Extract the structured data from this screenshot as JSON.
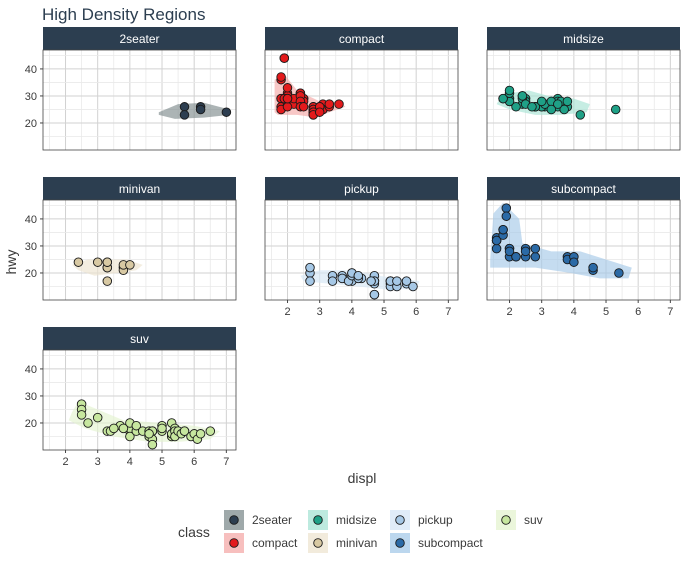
{
  "chart_data": {
    "type": "scatter",
    "title": "High Density Regions",
    "xlabel": "displ",
    "ylabel": "hwy",
    "xlim": [
      1.3,
      7.3
    ],
    "ylim": [
      10,
      47
    ],
    "x_ticks": [
      2,
      3,
      4,
      5,
      6,
      7
    ],
    "y_ticks": [
      20,
      30,
      40
    ],
    "grid": true,
    "legend": {
      "title": "class",
      "placement": "bottom",
      "entries": [
        "2seater",
        "compact",
        "midsize",
        "minivan",
        "pickup",
        "subcompact",
        "suv"
      ]
    },
    "panels": [
      {
        "name": "2seater",
        "color": "#2d3e50",
        "region_color": "#7f8c8d",
        "points": [
          [
            5.7,
            26
          ],
          [
            5.7,
            23
          ],
          [
            6.2,
            26
          ],
          [
            6.2,
            25
          ],
          [
            7.0,
            24
          ]
        ],
        "region": [
          [
            4.9,
            24
          ],
          [
            5.5,
            27
          ],
          [
            6.3,
            27.5
          ],
          [
            7.1,
            25
          ],
          [
            7.1,
            23
          ],
          [
            6.3,
            22
          ],
          [
            5.4,
            21.5
          ],
          [
            4.9,
            23
          ]
        ]
      },
      {
        "name": "compact",
        "color": "#e31a1c",
        "region_color": "#f4a9a8",
        "points": [
          [
            1.8,
            29
          ],
          [
            1.8,
            29
          ],
          [
            2.0,
            31
          ],
          [
            2.0,
            30
          ],
          [
            2.8,
            26
          ],
          [
            2.8,
            26
          ],
          [
            3.1,
            27
          ],
          [
            1.8,
            26
          ],
          [
            1.8,
            25
          ],
          [
            2.0,
            28
          ],
          [
            2.0,
            27
          ],
          [
            2.8,
            25
          ],
          [
            2.8,
            25
          ],
          [
            3.1,
            25
          ],
          [
            3.1,
            25
          ],
          [
            2.2,
            27
          ],
          [
            2.2,
            29
          ],
          [
            2.4,
            31
          ],
          [
            2.4,
            31
          ],
          [
            3.0,
            26
          ],
          [
            3.0,
            26
          ],
          [
            3.3,
            26
          ],
          [
            1.8,
            36
          ],
          [
            1.8,
            37
          ],
          [
            1.9,
            44
          ],
          [
            1.9,
            29
          ],
          [
            2.0,
            26
          ],
          [
            2.0,
            29
          ],
          [
            2.5,
            29
          ],
          [
            2.5,
            29
          ],
          [
            2.8,
            23
          ],
          [
            2.8,
            24
          ],
          [
            1.9,
            44
          ],
          [
            2.0,
            29
          ],
          [
            2.5,
            28
          ],
          [
            2.8,
            24
          ],
          [
            2.8,
            23
          ],
          [
            3.0,
            24
          ],
          [
            3.3,
            27
          ],
          [
            3.6,
            27
          ],
          [
            2.4,
            30
          ],
          [
            2.4,
            28
          ],
          [
            2.0,
            33
          ],
          [
            2.4,
            26
          ],
          [
            2.5,
            26
          ]
        ],
        "region": [
          [
            1.6,
            24
          ],
          [
            1.6,
            36
          ],
          [
            1.9,
            38
          ],
          [
            2.3,
            32
          ],
          [
            3.0,
            28
          ],
          [
            3.6,
            28
          ],
          [
            3.8,
            26
          ],
          [
            3.3,
            24
          ],
          [
            2.9,
            22
          ],
          [
            2.3,
            23
          ],
          [
            1.7,
            23
          ]
        ]
      },
      {
        "name": "midsize",
        "color": "#1fa187",
        "region_color": "#a7e3d4",
        "points": [
          [
            2.4,
            27
          ],
          [
            2.4,
            30
          ],
          [
            3.1,
            26
          ],
          [
            3.5,
            29
          ],
          [
            3.6,
            26
          ],
          [
            2.0,
            29
          ],
          [
            2.0,
            28
          ],
          [
            2.5,
            29
          ],
          [
            2.5,
            28
          ],
          [
            3.0,
            27
          ],
          [
            3.0,
            26
          ],
          [
            3.5,
            26
          ],
          [
            2.2,
            26
          ],
          [
            2.4,
            29
          ],
          [
            3.0,
            26
          ],
          [
            3.5,
            28
          ],
          [
            2.0,
            28
          ],
          [
            2.8,
            26
          ],
          [
            3.8,
            26
          ],
          [
            1.8,
            29
          ],
          [
            1.8,
            29
          ],
          [
            2.0,
            31
          ],
          [
            2.0,
            32
          ],
          [
            2.8,
            26
          ],
          [
            2.8,
            26
          ],
          [
            3.1,
            27
          ],
          [
            3.6,
            28
          ],
          [
            4.2,
            23
          ],
          [
            5.3,
            25
          ],
          [
            2.5,
            27
          ],
          [
            3.3,
            28
          ],
          [
            3.8,
            28
          ],
          [
            3.7,
            25
          ],
          [
            2.4,
            30
          ],
          [
            3.5,
            27
          ],
          [
            2.7,
            26
          ],
          [
            3.0,
            28
          ],
          [
            3.3,
            25
          ]
        ],
        "region": [
          [
            1.7,
            29
          ],
          [
            2.0,
            31
          ],
          [
            2.6,
            32
          ],
          [
            3.2,
            30
          ],
          [
            4.0,
            29
          ],
          [
            4.5,
            27
          ],
          [
            4.4,
            24
          ],
          [
            3.6,
            23
          ],
          [
            2.8,
            23
          ],
          [
            2.0,
            25
          ],
          [
            1.6,
            27
          ]
        ]
      },
      {
        "name": "minivan",
        "color": "#d8c9a3",
        "region_color": "#ede4d0",
        "points": [
          [
            2.4,
            24
          ],
          [
            3.0,
            24
          ],
          [
            3.3,
            22
          ],
          [
            3.3,
            22
          ],
          [
            3.3,
            24
          ],
          [
            3.3,
            24
          ],
          [
            3.3,
            17
          ],
          [
            3.8,
            22
          ],
          [
            3.8,
            21
          ],
          [
            3.8,
            23
          ],
          [
            4.0,
            23
          ]
        ],
        "region": [
          [
            2.2,
            23
          ],
          [
            2.7,
            25
          ],
          [
            3.3,
            25
          ],
          [
            3.9,
            25
          ],
          [
            4.4,
            23
          ],
          [
            4.2,
            21
          ],
          [
            3.6,
            20
          ],
          [
            2.9,
            19
          ],
          [
            2.4,
            21
          ]
        ]
      },
      {
        "name": "pickup",
        "color": "#a6c8e6",
        "region_color": "#d6e6f5",
        "points": [
          [
            2.7,
            20
          ],
          [
            2.7,
            17
          ],
          [
            2.7,
            22
          ],
          [
            3.4,
            19
          ],
          [
            3.4,
            17
          ],
          [
            4.0,
            20
          ],
          [
            4.0,
            17
          ],
          [
            4.7,
            17
          ],
          [
            4.7,
            19
          ],
          [
            4.7,
            17
          ],
          [
            4.7,
            12
          ],
          [
            5.2,
            17
          ],
          [
            5.2,
            16
          ],
          [
            5.7,
            16
          ],
          [
            5.9,
            15
          ],
          [
            4.7,
            16
          ],
          [
            5.2,
            17
          ],
          [
            3.7,
            19
          ],
          [
            3.7,
            18
          ],
          [
            3.9,
            17
          ],
          [
            4.3,
            18
          ],
          [
            4.7,
            17
          ],
          [
            4.7,
            12
          ],
          [
            5.2,
            15
          ],
          [
            5.2,
            17
          ],
          [
            5.7,
            17
          ],
          [
            4.0,
            19
          ],
          [
            4.0,
            20
          ],
          [
            4.6,
            17
          ],
          [
            5.4,
            15
          ],
          [
            5.4,
            17
          ],
          [
            4.2,
            18
          ],
          [
            4.2,
            19
          ]
        ],
        "region": [
          [
            2.4,
            19
          ],
          [
            3.0,
            21
          ],
          [
            4.0,
            21
          ],
          [
            4.8,
            19
          ],
          [
            5.5,
            18
          ],
          [
            6.1,
            17
          ],
          [
            6.0,
            14
          ],
          [
            5.0,
            14
          ],
          [
            4.2,
            15
          ],
          [
            3.3,
            16
          ],
          [
            2.5,
            17
          ]
        ]
      },
      {
        "name": "subcompact",
        "color": "#2b6aa6",
        "region_color": "#a6c9e8",
        "points": [
          [
            1.6,
            33
          ],
          [
            1.6,
            32
          ],
          [
            1.6,
            32
          ],
          [
            1.6,
            29
          ],
          [
            1.6,
            32
          ],
          [
            1.8,
            34
          ],
          [
            1.8,
            36
          ],
          [
            1.8,
            36
          ],
          [
            1.9,
            44
          ],
          [
            1.9,
            41
          ],
          [
            2.0,
            29
          ],
          [
            2.0,
            26
          ],
          [
            2.0,
            29
          ],
          [
            2.0,
            28
          ],
          [
            2.2,
            26
          ],
          [
            2.2,
            26
          ],
          [
            2.5,
            26
          ],
          [
            2.5,
            29
          ],
          [
            2.5,
            28
          ],
          [
            2.8,
            26
          ],
          [
            2.8,
            29
          ],
          [
            3.8,
            26
          ],
          [
            3.8,
            25
          ],
          [
            4.0,
            26
          ],
          [
            4.0,
            24
          ],
          [
            4.6,
            21
          ],
          [
            4.6,
            22
          ],
          [
            5.4,
            20
          ]
        ],
        "region": [
          [
            1.4,
            25
          ],
          [
            1.5,
            42
          ],
          [
            1.8,
            46
          ],
          [
            2.3,
            40
          ],
          [
            2.4,
            31
          ],
          [
            3.3,
            28
          ],
          [
            4.2,
            28
          ],
          [
            5.0,
            25
          ],
          [
            5.8,
            22
          ],
          [
            5.7,
            18
          ],
          [
            4.8,
            18
          ],
          [
            3.9,
            20
          ],
          [
            2.8,
            22
          ],
          [
            1.9,
            22
          ],
          [
            1.4,
            22
          ]
        ]
      },
      {
        "name": "suv",
        "color": "#c7e79f",
        "region_color": "#e4f3cf",
        "points": [
          [
            2.5,
            27
          ],
          [
            2.5,
            25
          ],
          [
            2.5,
            23
          ],
          [
            2.7,
            20
          ],
          [
            3.0,
            22
          ],
          [
            3.3,
            17
          ],
          [
            3.4,
            17
          ],
          [
            3.7,
            19
          ],
          [
            4.0,
            17
          ],
          [
            4.0,
            19
          ],
          [
            4.0,
            18
          ],
          [
            4.0,
            20
          ],
          [
            4.0,
            15
          ],
          [
            4.2,
            17
          ],
          [
            4.2,
            19
          ],
          [
            4.4,
            17
          ],
          [
            4.6,
            17
          ],
          [
            4.6,
            15
          ],
          [
            4.7,
            17
          ],
          [
            4.7,
            14
          ],
          [
            4.7,
            17
          ],
          [
            4.7,
            12
          ],
          [
            5.0,
            19
          ],
          [
            5.0,
            17
          ],
          [
            5.3,
            15
          ],
          [
            5.3,
            16
          ],
          [
            5.3,
            16
          ],
          [
            5.3,
            20
          ],
          [
            5.4,
            18
          ],
          [
            5.4,
            17
          ],
          [
            5.4,
            15
          ],
          [
            5.5,
            17
          ],
          [
            5.6,
            16
          ],
          [
            5.7,
            17
          ],
          [
            5.7,
            17
          ],
          [
            5.9,
            15
          ],
          [
            6.0,
            16
          ],
          [
            6.1,
            14
          ],
          [
            6.2,
            16
          ],
          [
            6.5,
            17
          ],
          [
            3.5,
            18
          ],
          [
            3.8,
            18
          ],
          [
            4.6,
            16
          ],
          [
            5.0,
            18
          ]
        ],
        "region": [
          [
            2.2,
            24
          ],
          [
            2.4,
            28
          ],
          [
            3.0,
            25
          ],
          [
            3.8,
            21
          ],
          [
            5.0,
            20
          ],
          [
            6.0,
            19
          ],
          [
            6.8,
            17
          ],
          [
            6.5,
            14
          ],
          [
            5.5,
            13
          ],
          [
            4.6,
            13
          ],
          [
            3.5,
            15
          ],
          [
            2.6,
            18
          ],
          [
            2.1,
            21
          ]
        ]
      }
    ]
  }
}
